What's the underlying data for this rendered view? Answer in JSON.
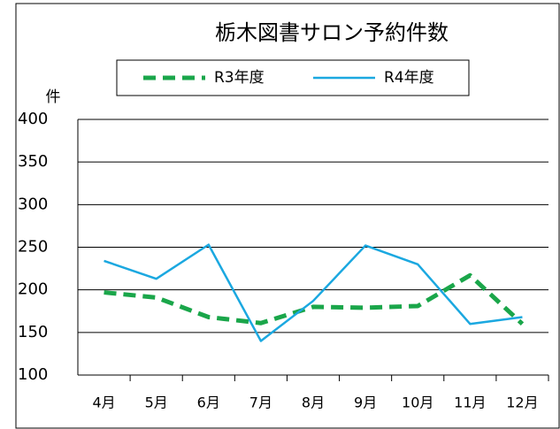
{
  "chart_data": {
    "type": "line",
    "title": "栃木図書サロン予約件数",
    "y_label": "件",
    "categories": [
      "4月",
      "5月",
      "6月",
      "7月",
      "8月",
      "9月",
      "10月",
      "11月",
      "12月"
    ],
    "series": [
      {
        "name": "R3年度",
        "color": "#1aa64a",
        "dashed": true,
        "values": [
          197,
          191,
          168,
          161,
          180,
          179,
          181,
          217,
          160
        ]
      },
      {
        "name": "R4年度",
        "color": "#1ba8e0",
        "dashed": false,
        "values": [
          234,
          213,
          253,
          140,
          187,
          252,
          230,
          160,
          168
        ]
      }
    ],
    "ylim": [
      100,
      400
    ],
    "yticks": [
      100,
      150,
      200,
      250,
      300,
      350,
      400
    ],
    "grid": true,
    "legend": "top"
  }
}
